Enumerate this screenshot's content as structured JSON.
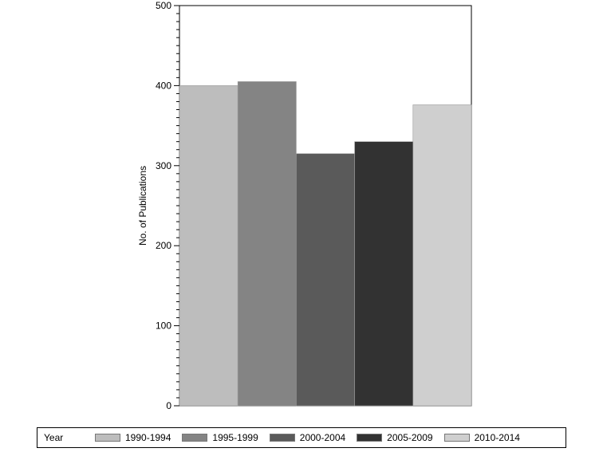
{
  "chart_data": {
    "type": "bar",
    "ylabel": "No. of Publications",
    "ylim": [
      0,
      500
    ],
    "yticks": [
      0,
      100,
      200,
      300,
      400,
      500
    ],
    "grid": false,
    "legend": {
      "title": "Year",
      "placement": "bottom"
    },
    "categories": [
      "1990-1994",
      "1995-1999",
      "2000-2004",
      "2005-2009",
      "2010-2014"
    ],
    "values": [
      400,
      405,
      315,
      330,
      376
    ],
    "colors": [
      "#bdbdbd",
      "#848484",
      "#5a5a5a",
      "#323232",
      "#cfcfcf"
    ]
  }
}
